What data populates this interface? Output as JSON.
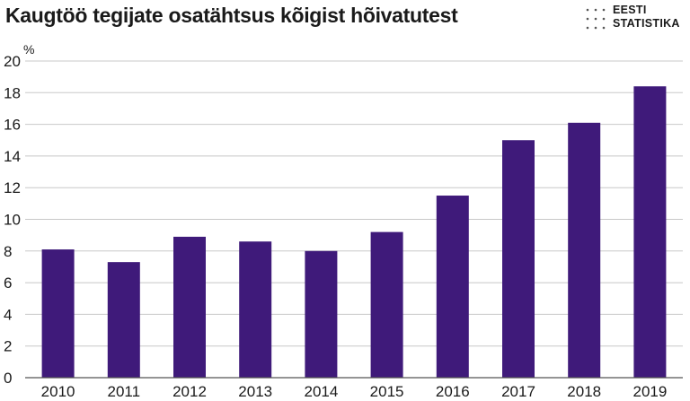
{
  "title": "Kaugtöö tegijate osatähtsus kõigist hõivatutest",
  "logo": {
    "line1": "EESTI",
    "line2": "STATISTIKA"
  },
  "colors": {
    "bar": "#3f1a7a",
    "grid": "#c8c8c8",
    "axis": "#555555"
  },
  "chart_data": {
    "type": "bar",
    "title": "Kaugtöö tegijate osatähtsus kõigist hõivatutest",
    "ylabel": "%",
    "xlabel": "",
    "categories": [
      "2010",
      "2011",
      "2012",
      "2013",
      "2014",
      "2015",
      "2016",
      "2017",
      "2018",
      "2019"
    ],
    "values": [
      8.1,
      7.3,
      8.9,
      8.6,
      8.0,
      9.2,
      11.5,
      15.0,
      16.1,
      18.4
    ],
    "ylim": [
      0,
      20
    ],
    "yticks": [
      "0",
      "2",
      "4",
      "6",
      "8",
      "10",
      "12",
      "14",
      "16",
      "18",
      "20"
    ],
    "grid": true,
    "legend": "none"
  }
}
